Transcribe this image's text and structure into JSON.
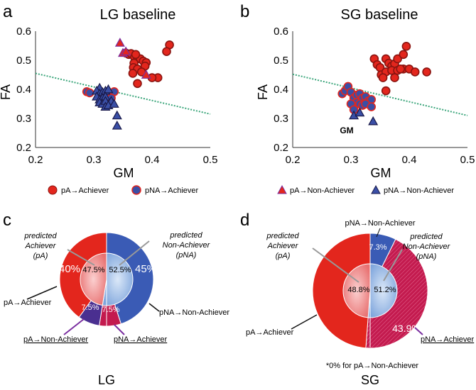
{
  "colors": {
    "achiever_red": "#e3261d",
    "nonachiever_blue": "#3a4fa6",
    "outline_red": "#8a1410",
    "outline_purple": "#7a2ea0",
    "dotted_line": "#3aa57a",
    "pie_red": "#e3261d",
    "pie_blue": "#3a5bb5",
    "pie_purple": "#4a2f90",
    "pie_magenta": "#c31a4e",
    "inner_red": "#f3a0a0",
    "inner_blue": "#a8c4ea"
  },
  "chart_data": [
    {
      "panel": "a",
      "type": "scatter",
      "title": "LG baseline",
      "xlabel": "GM",
      "ylabel": "FA",
      "xlim": [
        0.2,
        0.5
      ],
      "ylim": [
        0.2,
        0.6
      ],
      "xticks": [
        "0.2",
        "0.3",
        "0.4",
        "0.5"
      ],
      "yticks": [
        "0.2",
        "0.3",
        "0.4",
        "0.5",
        "0.6"
      ],
      "decision_line": {
        "x": [
          0.2,
          0.5
        ],
        "y": [
          0.455,
          0.315
        ]
      },
      "series": [
        {
          "name": "pA→Achiever",
          "marker": "circle",
          "color": "#e3261d",
          "outline": "#8a1410",
          "points": [
            [
              0.355,
              0.525
            ],
            [
              0.36,
              0.52
            ],
            [
              0.364,
              0.523
            ],
            [
              0.37,
              0.51
            ],
            [
              0.375,
              0.505
            ],
            [
              0.38,
              0.505
            ],
            [
              0.385,
              0.497
            ],
            [
              0.39,
              0.492
            ],
            [
              0.388,
              0.48
            ],
            [
              0.369,
              0.49
            ],
            [
              0.368,
              0.475
            ],
            [
              0.375,
              0.47
            ],
            [
              0.382,
              0.46
            ],
            [
              0.367,
              0.455
            ],
            [
              0.375,
              0.42
            ],
            [
              0.41,
              0.44
            ],
            [
              0.43,
              0.553
            ],
            [
              0.425,
              0.53
            ],
            [
              0.4,
              0.44
            ],
            [
              0.372,
              0.52
            ]
          ]
        },
        {
          "name": "pNA→Achiever",
          "marker": "circle",
          "color": "#3a4fa6",
          "outline": "#e3261d",
          "points": [
            [
              0.288,
              0.392
            ],
            [
              0.293,
              0.388
            ],
            [
              0.325,
              0.39
            ],
            [
              0.335,
              0.392
            ],
            [
              0.33,
              0.37
            ]
          ]
        },
        {
          "name": "pA→Non-Achiever",
          "marker": "triangle",
          "color": "#e3261d",
          "outline": "#7a2ea0",
          "points": [
            [
              0.345,
              0.56
            ],
            [
              0.35,
              0.525
            ],
            [
              0.355,
              0.53
            ],
            [
              0.39,
              0.45
            ]
          ]
        },
        {
          "name": "pNA→Non-Achiever",
          "marker": "triangle",
          "color": "#3a4fa6",
          "outline": "#1a1a4a",
          "points": [
            [
              0.31,
              0.405
            ],
            [
              0.305,
              0.395
            ],
            [
              0.31,
              0.385
            ],
            [
              0.315,
              0.39
            ],
            [
              0.32,
              0.395
            ],
            [
              0.325,
              0.4
            ],
            [
              0.305,
              0.375
            ],
            [
              0.31,
              0.365
            ],
            [
              0.315,
              0.37
            ],
            [
              0.32,
              0.375
            ],
            [
              0.31,
              0.355
            ],
            [
              0.315,
              0.35
            ],
            [
              0.32,
              0.36
            ],
            [
              0.33,
              0.36
            ],
            [
              0.32,
              0.34
            ],
            [
              0.325,
              0.345
            ],
            [
              0.335,
              0.35
            ],
            [
              0.34,
              0.31
            ],
            [
              0.34,
              0.275
            ]
          ]
        }
      ]
    },
    {
      "panel": "b",
      "type": "scatter",
      "title": "SG baseline",
      "xlabel": "GM",
      "ylabel": "FA",
      "xlim": [
        0.2,
        0.5
      ],
      "ylim": [
        0.2,
        0.6
      ],
      "xticks": [
        "0.2",
        "0.3",
        "0.4",
        "0.5"
      ],
      "yticks": [
        "0.2",
        "0.3",
        "0.4",
        "0.5",
        "0.6"
      ],
      "decision_line": {
        "x": [
          0.2,
          0.5
        ],
        "y": [
          0.452,
          0.31
        ]
      },
      "annotation": {
        "text": "GM",
        "x": 0.338,
        "y": 0.265
      },
      "series": [
        {
          "name": "pA→Achiever",
          "marker": "circle",
          "color": "#e3261d",
          "outline": "#8a1410",
          "points": [
            [
              0.34,
              0.505
            ],
            [
              0.345,
              0.485
            ],
            [
              0.35,
              0.475
            ],
            [
              0.36,
              0.505
            ],
            [
              0.365,
              0.49
            ],
            [
              0.37,
              0.48
            ],
            [
              0.375,
              0.488
            ],
            [
              0.38,
              0.505
            ],
            [
              0.39,
              0.52
            ],
            [
              0.395,
              0.548
            ],
            [
              0.352,
              0.45
            ],
            [
              0.36,
              0.46
            ],
            [
              0.37,
              0.465
            ],
            [
              0.38,
              0.465
            ],
            [
              0.39,
              0.47
            ],
            [
              0.4,
              0.47
            ],
            [
              0.41,
              0.46
            ],
            [
              0.43,
              0.46
            ],
            [
              0.375,
              0.44
            ],
            [
              0.355,
              0.44
            ],
            [
              0.36,
              0.395
            ],
            [
              0.385,
              0.47
            ]
          ]
        },
        {
          "name": "pNA→Achiever",
          "marker": "circle",
          "color": "#3a4fa6",
          "outline": "#e3261d",
          "points": [
            [
              0.285,
              0.385
            ],
            [
              0.29,
              0.395
            ],
            [
              0.295,
              0.41
            ],
            [
              0.3,
              0.39
            ],
            [
              0.305,
              0.37
            ],
            [
              0.31,
              0.38
            ],
            [
              0.315,
              0.385
            ],
            [
              0.32,
              0.37
            ],
            [
              0.325,
              0.375
            ],
            [
              0.33,
              0.36
            ],
            [
              0.335,
              0.365
            ],
            [
              0.31,
              0.355
            ],
            [
              0.315,
              0.35
            ],
            [
              0.32,
              0.345
            ],
            [
              0.325,
              0.35
            ],
            [
              0.3,
              0.35
            ],
            [
              0.305,
              0.33
            ],
            [
              0.335,
              0.34
            ]
          ]
        },
        {
          "name": "pNA→Non-Achiever",
          "marker": "triangle",
          "color": "#3a4fa6",
          "outline": "#1a1a4a",
          "points": [
            [
              0.305,
              0.31
            ],
            [
              0.315,
              0.32
            ],
            [
              0.338,
              0.29
            ]
          ]
        }
      ]
    },
    {
      "panel": "c",
      "type": "pie",
      "title": "LG",
      "inner": [
        {
          "name": "predicted Achiever (pA)",
          "value": 47.5,
          "label": "47.5%"
        },
        {
          "name": "predicted Non-Achiever (pNA)",
          "value": 52.5,
          "label": "52.5%"
        }
      ],
      "outer": [
        {
          "name": "pA→Achiever",
          "value": 40,
          "label": "40%"
        },
        {
          "name": "pNA→Non-Achiever",
          "value": 45,
          "label": "45%"
        },
        {
          "name": "pNA→Achiever",
          "value": 7.5,
          "label": "7.5%"
        },
        {
          "name": "pA→Non-Achiever",
          "value": 7.5,
          "label": "7.5%"
        }
      ]
    },
    {
      "panel": "d",
      "type": "pie",
      "title": "SG",
      "inner": [
        {
          "name": "predicted Achiever (pA)",
          "value": 48.8,
          "label": "48.8%"
        },
        {
          "name": "predicted Non-Achiever (pNA)",
          "value": 51.2,
          "label": "51.2%"
        }
      ],
      "outer": [
        {
          "name": "pA→Achiever",
          "value": 48.8,
          "label": ""
        },
        {
          "name": "pNA→Non-Achiever",
          "value": 7.3,
          "label": "7.3%"
        },
        {
          "name": "pNA→Achiever",
          "value": 43.9,
          "label": "43.9%"
        }
      ],
      "footnote": "*0% for pA→Non-Achiever"
    }
  ],
  "panel_letters": {
    "a": "a",
    "b": "b",
    "c": "c",
    "d": "d"
  },
  "legend": {
    "pA_achiever": "pA→Achiever",
    "pNA_achiever": "pNA→Achiever",
    "pA_nonachiever": "pA→Non-Achiever",
    "pNA_nonachiever": "pNA→Non-Achiever"
  },
  "pie_labels": {
    "c_pA_line1": "predicted",
    "c_pA_line2": "Achiever",
    "c_pA_line3": "(pA)",
    "c_pNA_line1": "predicted",
    "c_pNA_line2": "Non-Achiever",
    "c_pNA_line3": "(pNA)",
    "c_pA_achiever": "pA→Achiever",
    "c_pNA_nonachiever": "pNA→Non-Achiever",
    "c_pA_nonachiever": "pA→Non-Achiever",
    "c_pNA_achiever": "pNA→Achiever",
    "d_pA_line1": "predicted",
    "d_pA_line2": "Achiever",
    "d_pA_line3": "(pA)",
    "d_pNA_line1": "predicted",
    "d_pNA_line2": "Non-Achiever",
    "d_pNA_line3": "(pNA)",
    "d_pNA_nonachiever": "pNA→Non-Achiever",
    "d_pA_achiever": "pA→Achiever",
    "d_pNA_achiever": "pNA→Achiever"
  }
}
